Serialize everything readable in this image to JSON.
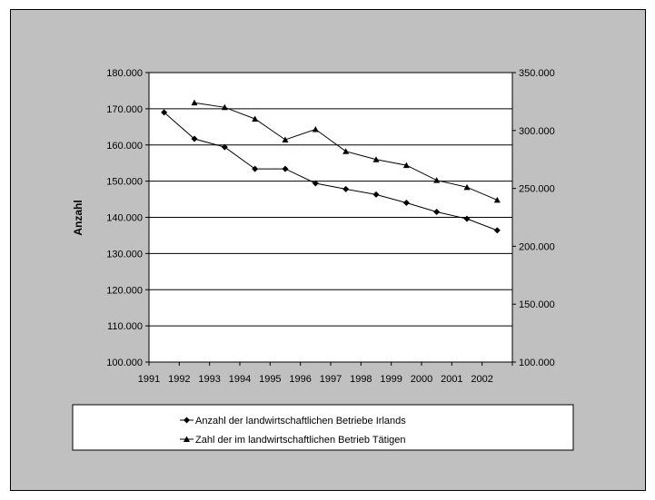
{
  "chart_data": {
    "type": "line",
    "title": "",
    "xlabel": "",
    "ylabel": "Anzahl",
    "categories": [
      "1991",
      "1992",
      "1993",
      "1994",
      "1995",
      "1996",
      "1997",
      "1998",
      "1999",
      "2000",
      "2001",
      "2002"
    ],
    "y_left": {
      "range": [
        100000,
        180000
      ],
      "ticks": [
        "100.000",
        "110.000",
        "120.000",
        "130.000",
        "140.000",
        "150.000",
        "160.000",
        "170.000",
        "180.000"
      ]
    },
    "y_right": {
      "range": [
        100000,
        350000
      ],
      "ticks": [
        "100.000",
        "150.000",
        "200.000",
        "250.000",
        "300.000",
        "350.000"
      ]
    },
    "grid": true,
    "legend_position": "bottom",
    "series": [
      {
        "name": "Anzahl der landwirtschaftlichen Betriebe Irlands",
        "axis": "left",
        "marker": "diamond",
        "values": [
          169000,
          161700,
          159400,
          153400,
          153400,
          149400,
          147800,
          146300,
          144000,
          141500,
          139600,
          136400
        ]
      },
      {
        "name": "Zahl der im landwirtschaftlichen Betrieb Tätigen",
        "axis": "right",
        "marker": "triangle",
        "values": [
          null,
          324000,
          320000,
          310000,
          292000,
          301000,
          282000,
          275000,
          270000,
          257000,
          251000,
          240000
        ]
      }
    ]
  },
  "colors": {
    "frame_bg": "#c0c0c0",
    "plot_bg": "#ffffff",
    "line": "#000000"
  }
}
